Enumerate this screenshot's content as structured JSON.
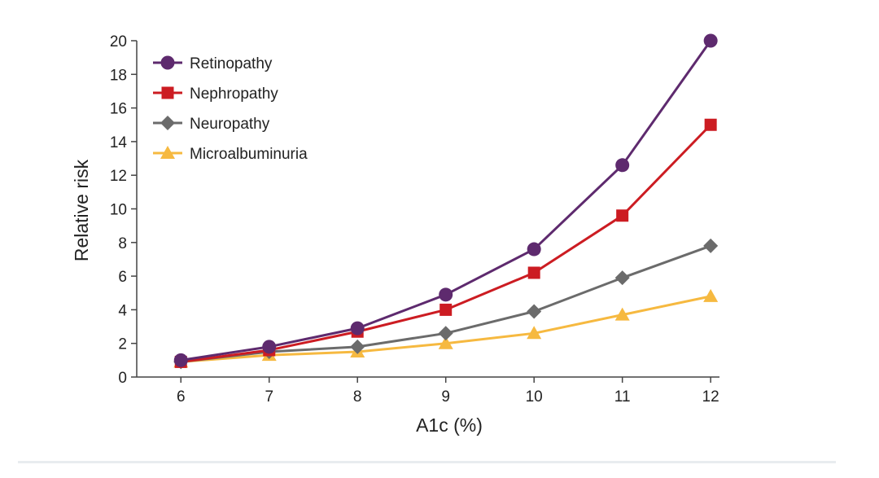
{
  "chart_data": {
    "type": "line",
    "title": "",
    "xlabel": "A1c (%)",
    "ylabel": "Relative risk",
    "x": [
      6,
      7,
      8,
      9,
      10,
      11,
      12
    ],
    "xticks": [
      "6",
      "7",
      "8",
      "9",
      "10",
      "11",
      "12"
    ],
    "yticks": [
      "0",
      "2",
      "4",
      "6",
      "8",
      "10",
      "12",
      "14",
      "16",
      "18",
      "20"
    ],
    "xlim": [
      5.5,
      12.1
    ],
    "ylim": [
      0,
      20
    ],
    "grid": false,
    "legend_position": "top-left",
    "series": [
      {
        "name": "Retinopathy",
        "color": "#5e2a6e",
        "marker": "circle",
        "values": [
          1.0,
          1.8,
          2.9,
          4.9,
          7.6,
          12.6,
          20.0
        ]
      },
      {
        "name": "Nephropathy",
        "color": "#cc1c22",
        "marker": "square",
        "values": [
          0.9,
          1.6,
          2.7,
          4.0,
          6.2,
          9.6,
          15.0
        ]
      },
      {
        "name": "Neuropathy",
        "color": "#6b6b6b",
        "marker": "diamond",
        "values": [
          0.9,
          1.5,
          1.8,
          2.6,
          3.9,
          5.9,
          7.8
        ]
      },
      {
        "name": "Microalbuminuria",
        "color": "#f6b940",
        "marker": "triangle",
        "values": [
          0.9,
          1.3,
          1.5,
          2.0,
          2.6,
          3.7,
          4.8
        ]
      }
    ]
  }
}
